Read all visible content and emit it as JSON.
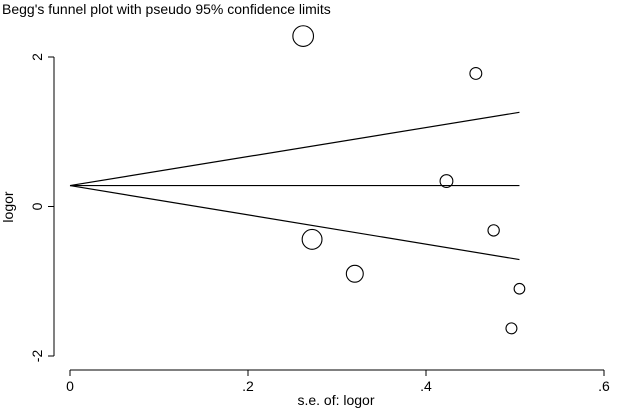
{
  "chart_data": {
    "type": "scatter",
    "title": "Begg's funnel plot with pseudo 95% confidence limits",
    "xlabel": "s.e. of: logor",
    "ylabel": "logor",
    "xlim": [
      0,
      0.6
    ],
    "ylim": [
      -2,
      2
    ],
    "x_ticks": [
      {
        "value": 0,
        "label": "0"
      },
      {
        "value": 0.2,
        "label": ".2"
      },
      {
        "value": 0.4,
        "label": ".4"
      },
      {
        "value": 0.6,
        "label": ".6"
      }
    ],
    "y_ticks": [
      {
        "value": 2,
        "label": "2"
      },
      {
        "value": 0,
        "label": "0"
      },
      {
        "value": -2,
        "label": "-2"
      }
    ],
    "pooled_estimate": 0.28,
    "confidence_limits": {
      "se_max": 0.505,
      "upper_at_max": 1.26,
      "lower_at_max": -0.71
    },
    "points": [
      {
        "x": 0.262,
        "y": 2.28,
        "weight": 14.6
      },
      {
        "x": 0.456,
        "y": 1.78,
        "weight": 4.8
      },
      {
        "x": 0.423,
        "y": 0.34,
        "weight": 5.6
      },
      {
        "x": 0.272,
        "y": -0.44,
        "weight": 13.5
      },
      {
        "x": 0.476,
        "y": -0.32,
        "weight": 4.4
      },
      {
        "x": 0.32,
        "y": -0.9,
        "weight": 9.8
      },
      {
        "x": 0.505,
        "y": -1.1,
        "weight": 3.9
      },
      {
        "x": 0.496,
        "y": -1.63,
        "weight": 4.1
      }
    ]
  }
}
